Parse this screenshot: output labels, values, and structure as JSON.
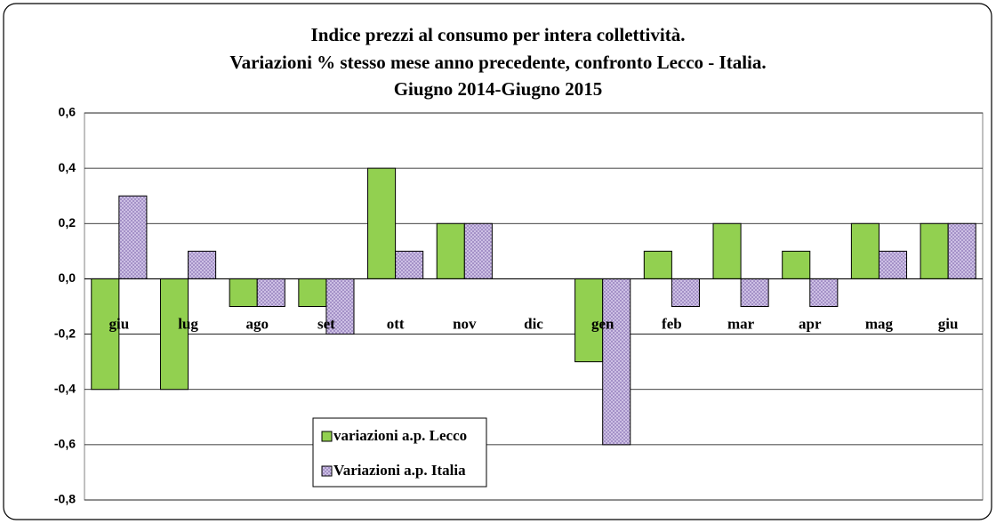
{
  "chart_data": {
    "type": "bar",
    "title": [
      "Indice prezzi al consumo per intera collettività.",
      "Variazioni % stesso mese anno precedente, confronto Lecco - Italia.",
      "Giugno 2014-Giugno 2015"
    ],
    "categories": [
      "giu",
      "lug",
      "ago",
      "set",
      "ott",
      "nov",
      "dic",
      "gen",
      "feb",
      "mar",
      "apr",
      "mag",
      "giu"
    ],
    "series": [
      {
        "name": "variazioni a.p. Lecco",
        "color": "#92d050",
        "values": [
          -0.4,
          -0.4,
          -0.1,
          -0.1,
          0.4,
          0.2,
          0,
          -0.3,
          0.1,
          0.2,
          0.1,
          0.2,
          0.2
        ]
      },
      {
        "name": "Variazioni a.p. Italia",
        "color": "#c8b6e2",
        "values": [
          0.3,
          0.1,
          -0.1,
          -0.2,
          0.1,
          0.2,
          0,
          -0.6,
          -0.1,
          -0.1,
          -0.1,
          0.1,
          0.2
        ]
      }
    ],
    "ylim": [
      -0.8,
      0.6
    ],
    "yticks": [
      {
        "value": -0.8,
        "label": "-0,8"
      },
      {
        "value": -0.6,
        "label": "-0,6"
      },
      {
        "value": -0.4,
        "label": "-0,4"
      },
      {
        "value": -0.2,
        "label": "-0,2"
      },
      {
        "value": 0,
        "label": "0,0"
      },
      {
        "value": 0.2,
        "label": "0,2"
      },
      {
        "value": 0.4,
        "label": "0,4"
      },
      {
        "value": 0.6,
        "label": "0,6"
      }
    ],
    "grid": true,
    "legend": "lower center"
  }
}
